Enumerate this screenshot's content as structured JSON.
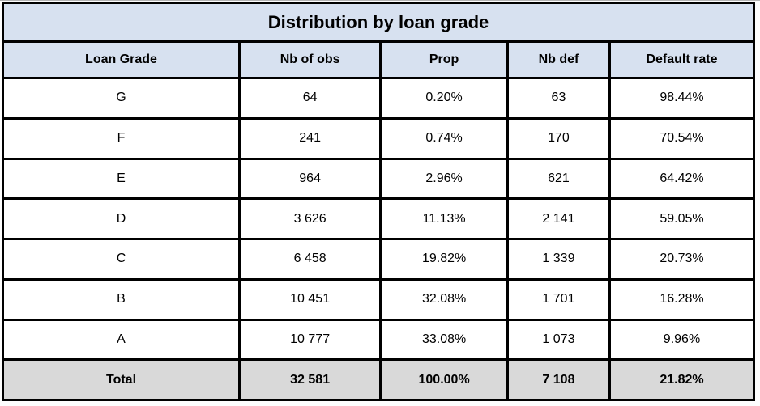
{
  "title": "Distribution by loan grade",
  "colors": {
    "header_bg": "#d7e1f0",
    "total_row_bg": "#d9d9d9",
    "data_row_bg": "#ffffff",
    "border": "#000000",
    "text": "#000000"
  },
  "table": {
    "columns": [
      "Loan Grade",
      "Nb of obs",
      "Prop",
      "Nb def",
      "Default rate"
    ],
    "rows": [
      {
        "cells": [
          "G",
          "64",
          "0.20%",
          "63",
          "98.44%"
        ],
        "total": false
      },
      {
        "cells": [
          "F",
          "241",
          "0.74%",
          "170",
          "70.54%"
        ],
        "total": false
      },
      {
        "cells": [
          "E",
          "964",
          "2.96%",
          "621",
          "64.42%"
        ],
        "total": false
      },
      {
        "cells": [
          "D",
          "3 626",
          "11.13%",
          "2 141",
          "59.05%"
        ],
        "total": false
      },
      {
        "cells": [
          "C",
          "6 458",
          "19.82%",
          "1 339",
          "20.73%"
        ],
        "total": false
      },
      {
        "cells": [
          "B",
          "10 451",
          "32.08%",
          "1 701",
          "16.28%"
        ],
        "total": false
      },
      {
        "cells": [
          "A",
          "10 777",
          "33.08%",
          "1 073",
          "9.96%"
        ],
        "total": false
      },
      {
        "cells": [
          "Total",
          "32 581",
          "100.00%",
          "7 108",
          "21.82%"
        ],
        "total": true
      }
    ]
  },
  "chart_data": {
    "type": "table",
    "title": "Distribution by loan grade",
    "columns": [
      "Loan Grade",
      "Nb of obs",
      "Prop",
      "Nb def",
      "Default rate"
    ],
    "rows": [
      [
        "G",
        64,
        "0.20%",
        63,
        "98.44%"
      ],
      [
        "F",
        241,
        "0.74%",
        170,
        "70.54%"
      ],
      [
        "E",
        964,
        "2.96%",
        621,
        "64.42%"
      ],
      [
        "D",
        3626,
        "11.13%",
        2141,
        "59.05%"
      ],
      [
        "C",
        6458,
        "19.82%",
        1339,
        "20.73%"
      ],
      [
        "B",
        10451,
        "32.08%",
        1701,
        "16.28%"
      ],
      [
        "A",
        10777,
        "33.08%",
        1073,
        "9.96%"
      ]
    ],
    "total_row": [
      "Total",
      32581,
      "100.00%",
      7108,
      "21.82%"
    ],
    "notes": "Thousands separated by spaces in display; sorted by default rate descending; grid on; black 3px borders"
  }
}
